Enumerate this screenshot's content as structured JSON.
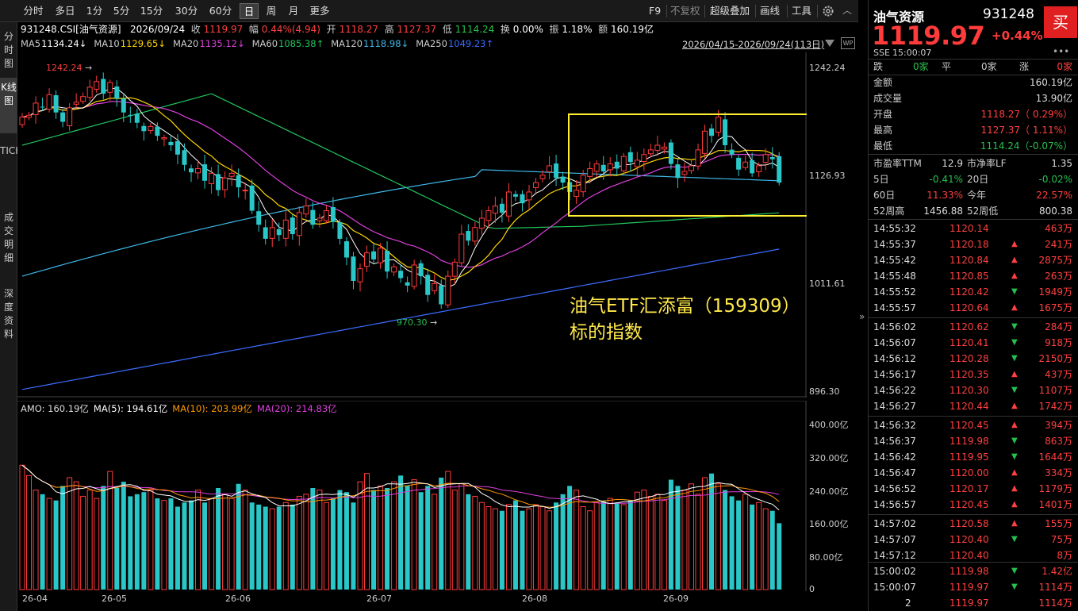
{
  "toolbar": {
    "timeframes": [
      "分时",
      "多日",
      "1分",
      "5分",
      "15分",
      "30分",
      "60分",
      "日",
      "周",
      "月",
      "更多"
    ],
    "active_timeframe": "日",
    "right_items": [
      "F9",
      "不复权",
      "超级叠加",
      "画线",
      "工具"
    ],
    "settings_icon": "gear-icon"
  },
  "sidebar": {
    "tabs": [
      "分时图",
      "K线图",
      "TICK",
      "成交明细",
      "深度资料"
    ],
    "active_tab": "K线图"
  },
  "info": {
    "code_name": "931248.CSI[油气资源]",
    "date": "2026/09/24",
    "close_label": "收",
    "close": "1119.97",
    "change_label": "幅",
    "change": "0.44%(4.94)",
    "open_label": "开",
    "open": "1118.27",
    "high_label": "高",
    "high": "1127.37",
    "low_label": "低",
    "low": "1114.24",
    "turnover_label": "换",
    "turnover": "0.00%",
    "amplitude_label": "振",
    "amplitude": "1.18%",
    "amount_label": "额",
    "amount": "160.19亿",
    "ma": [
      {
        "label": "MA5",
        "value": "1134.24↓",
        "color": "#ffffff"
      },
      {
        "label": "MA10",
        "value": "1129.65↓",
        "color": "#ffd700"
      },
      {
        "label": "MA20",
        "value": "1135.12↓",
        "color": "#e040e0"
      },
      {
        "label": "MA60",
        "value": "1085.38↑",
        "color": "#22c55e"
      },
      {
        "label": "MA120",
        "value": "1118.98↓",
        "color": "#3fb8e8"
      },
      {
        "label": "MA250",
        "value": "1049.23↑",
        "color": "#3b6cff"
      }
    ],
    "range": "2026/04/15-2026/09/24(113日)"
  },
  "chart_data": [
    {
      "type": "candlestick",
      "title": "931248.CSI[油气资源]",
      "ylim": [
        896.3,
        1242.24
      ],
      "y_ticks": [
        "1242.24",
        "1126.93",
        "1011.61",
        "896.30"
      ],
      "x_ticks": [
        "26-04",
        "26-05",
        "26-06",
        "26-07",
        "26-08",
        "26-09"
      ],
      "high_marker": "1242.24",
      "low_marker": "970.30",
      "annotation": [
        "油气ETF汇添富（159309）",
        "标的指数"
      ],
      "closes": [
        1190,
        1192,
        1205,
        1201,
        1214,
        1195,
        1185,
        1200,
        1206,
        1212,
        1222,
        1228,
        1215,
        1227,
        1210,
        1195,
        1192,
        1184,
        1175,
        1180,
        1170,
        1168,
        1160,
        1150,
        1139,
        1131,
        1135,
        1122,
        1130,
        1112,
        1125,
        1130,
        1115,
        1112,
        1090,
        1075,
        1060,
        1072,
        1064,
        1080,
        1065,
        1088,
        1095,
        1075,
        1082,
        1090,
        1078,
        1060,
        1040,
        1015,
        1028,
        1045,
        1038,
        1050,
        1025,
        1030,
        1018,
        1010,
        1032,
        1020,
        1000,
        1012,
        990,
        1020,
        1035,
        1065,
        1058,
        1072,
        1082,
        1090,
        1095,
        1088,
        1110,
        1105,
        1098,
        1110,
        1120,
        1128,
        1138,
        1125,
        1120,
        1110,
        1112,
        1128,
        1135,
        1140,
        1132,
        1140,
        1135,
        1148,
        1142,
        1144,
        1150,
        1155,
        1160,
        1158,
        1140,
        1125,
        1132,
        1138,
        1155,
        1175,
        1170,
        1190,
        1160,
        1150,
        1134,
        1142,
        1130,
        1138,
        1150,
        1145,
        1120
      ],
      "ma_values": {
        "MA5": 1134.24,
        "MA10": 1129.65,
        "MA20": 1135.12,
        "MA60": 1085.38,
        "MA120": 1118.98,
        "MA250": 1049.23
      }
    },
    {
      "type": "bar",
      "title": "AMO",
      "series": [
        {
          "name": "AMO",
          "value": "160.19亿"
        },
        {
          "name": "MA(5)",
          "value": "194.61亿",
          "color": "#ffffff"
        },
        {
          "name": "MA(10)",
          "value": "203.99亿",
          "color": "#ff9900"
        },
        {
          "name": "MA(20)",
          "value": "214.83亿",
          "color": "#e040e0"
        }
      ],
      "ylim": [
        0,
        400
      ],
      "y_ticks": [
        "400.00亿",
        "320.00亿",
        "240.00亿",
        "160.00亿",
        "80.00亿",
        "0"
      ],
      "values": [
        300,
        275,
        240,
        230,
        220,
        215,
        250,
        270,
        260,
        225,
        240,
        220,
        250,
        285,
        245,
        260,
        225,
        230,
        235,
        240,
        220,
        215,
        220,
        200,
        210,
        215,
        240,
        210,
        220,
        245,
        230,
        220,
        255,
        240,
        210,
        205,
        200,
        195,
        200,
        210,
        205,
        225,
        230,
        245,
        240,
        210,
        220,
        240,
        235,
        210,
        260,
        280,
        240,
        250,
        245,
        260,
        275,
        250,
        265,
        235,
        250,
        230,
        270,
        285,
        240,
        255,
        230,
        225,
        210,
        200,
        195,
        190,
        205,
        215,
        190,
        195,
        205,
        200,
        190,
        210,
        230,
        250,
        240,
        200,
        190,
        210,
        215,
        220,
        210,
        205,
        215,
        235,
        240,
        225,
        230,
        215,
        265,
        250,
        240,
        255,
        230,
        270,
        280,
        255,
        240,
        225,
        215,
        230,
        205,
        210,
        195,
        190,
        160
      ]
    }
  ],
  "quote": {
    "name": "油气资源",
    "code": "931248",
    "price": "1119.97",
    "pct": "+0.44%",
    "buy_label": "买",
    "exchange": "SSE",
    "time": "15:00:07",
    "breadth": {
      "down_label": "跌",
      "down": "0家",
      "flat_label": "平",
      "flat": "0家",
      "up_label": "涨",
      "up": "0家"
    },
    "stats": [
      {
        "k": "金额",
        "v": "160.19亿",
        "c": "#ddd"
      },
      {
        "k": "成交量",
        "v": "13.90亿",
        "c": "#ddd"
      },
      {
        "k": "开盘",
        "v": "1118.27（ 0.29%）",
        "c": "#ff4040"
      },
      {
        "k": "最高",
        "v": "1127.37（ 1.11%）",
        "c": "#ff4040"
      },
      {
        "k": "最低",
        "v": "1114.24（-0.07%）",
        "c": "#26c04e"
      }
    ],
    "pairs": [
      {
        "k1": "市盈率TTM",
        "v1": "12.9",
        "c1": "#ddd",
        "k2": "市净率LF",
        "v2": "1.35",
        "c2": "#ddd"
      },
      {
        "k1": "5日",
        "v1": "-0.41%",
        "c1": "#26c04e",
        "k2": "20日",
        "v2": "-0.02%",
        "c2": "#26c04e"
      },
      {
        "k1": "60日",
        "v1": "11.33%",
        "c1": "#ff4040",
        "k2": "今年",
        "v2": "22.57%",
        "c2": "#ff4040"
      },
      {
        "k1": "52周高",
        "v1": "1456.88",
        "c1": "#ddd",
        "k2": "52周低",
        "v2": "800.38",
        "c2": "#ddd"
      }
    ],
    "ticks": [
      {
        "t": "14:55:32",
        "p": "1120.14",
        "a": "",
        "v": "463万",
        "c": "#ff4040"
      },
      {
        "t": "14:55:37",
        "p": "1120.18",
        "a": "up",
        "v": "241万",
        "c": "#ff4040"
      },
      {
        "t": "14:55:42",
        "p": "1120.84",
        "a": "up",
        "v": "2875万",
        "c": "#ff4040"
      },
      {
        "t": "14:55:48",
        "p": "1120.85",
        "a": "up",
        "v": "263万",
        "c": "#ff4040"
      },
      {
        "t": "14:55:52",
        "p": "1120.42",
        "a": "down",
        "v": "1949万",
        "c": "#ff4040"
      },
      {
        "t": "14:55:57",
        "p": "1120.64",
        "a": "up",
        "v": "1675万",
        "c": "#ff4040"
      },
      {
        "t": "14:56:02",
        "p": "1120.62",
        "a": "down",
        "v": "284万",
        "c": "#ff4040"
      },
      {
        "t": "14:56:07",
        "p": "1120.41",
        "a": "down",
        "v": "918万",
        "c": "#ff4040"
      },
      {
        "t": "14:56:12",
        "p": "1120.28",
        "a": "down",
        "v": "2150万",
        "c": "#ff4040"
      },
      {
        "t": "14:56:17",
        "p": "1120.35",
        "a": "up",
        "v": "437万",
        "c": "#ff4040"
      },
      {
        "t": "14:56:22",
        "p": "1120.30",
        "a": "down",
        "v": "1107万",
        "c": "#ff4040"
      },
      {
        "t": "14:56:27",
        "p": "1120.44",
        "a": "up",
        "v": "1742万",
        "c": "#ff4040"
      },
      {
        "t": "14:56:32",
        "p": "1120.45",
        "a": "up",
        "v": "394万",
        "c": "#ff4040"
      },
      {
        "t": "14:56:37",
        "p": "1119.98",
        "a": "down",
        "v": "863万",
        "c": "#ff4040"
      },
      {
        "t": "14:56:42",
        "p": "1119.95",
        "a": "down",
        "v": "1644万",
        "c": "#ff4040"
      },
      {
        "t": "14:56:47",
        "p": "1120.00",
        "a": "up",
        "v": "334万",
        "c": "#ff4040"
      },
      {
        "t": "14:56:52",
        "p": "1120.17",
        "a": "up",
        "v": "1179万",
        "c": "#ff4040"
      },
      {
        "t": "14:56:57",
        "p": "1120.45",
        "a": "up",
        "v": "1401万",
        "c": "#ff4040"
      },
      {
        "t": "14:57:02",
        "p": "1120.58",
        "a": "up",
        "v": "155万",
        "c": "#ff4040"
      },
      {
        "t": "14:57:07",
        "p": "1120.40",
        "a": "down",
        "v": "75万",
        "c": "#ff4040"
      },
      {
        "t": "14:57:12",
        "p": "1120.40",
        "a": "",
        "v": "8万",
        "c": "#ff4040"
      },
      {
        "t": "15:00:02",
        "p": "1119.98",
        "a": "down",
        "v": "1.42亿",
        "c": "#ff4040"
      },
      {
        "t": "15:00:07",
        "p": "1119.97",
        "a": "down",
        "v": "1114万",
        "c": "#ff4040"
      },
      {
        "t": "2",
        "p": "1119.97",
        "a": "",
        "v": "1114万",
        "c": "#ff4040"
      }
    ]
  },
  "colors": {
    "up": "#ff3b3b",
    "down": "#29c7c7",
    "highlight": "#ffee33"
  }
}
